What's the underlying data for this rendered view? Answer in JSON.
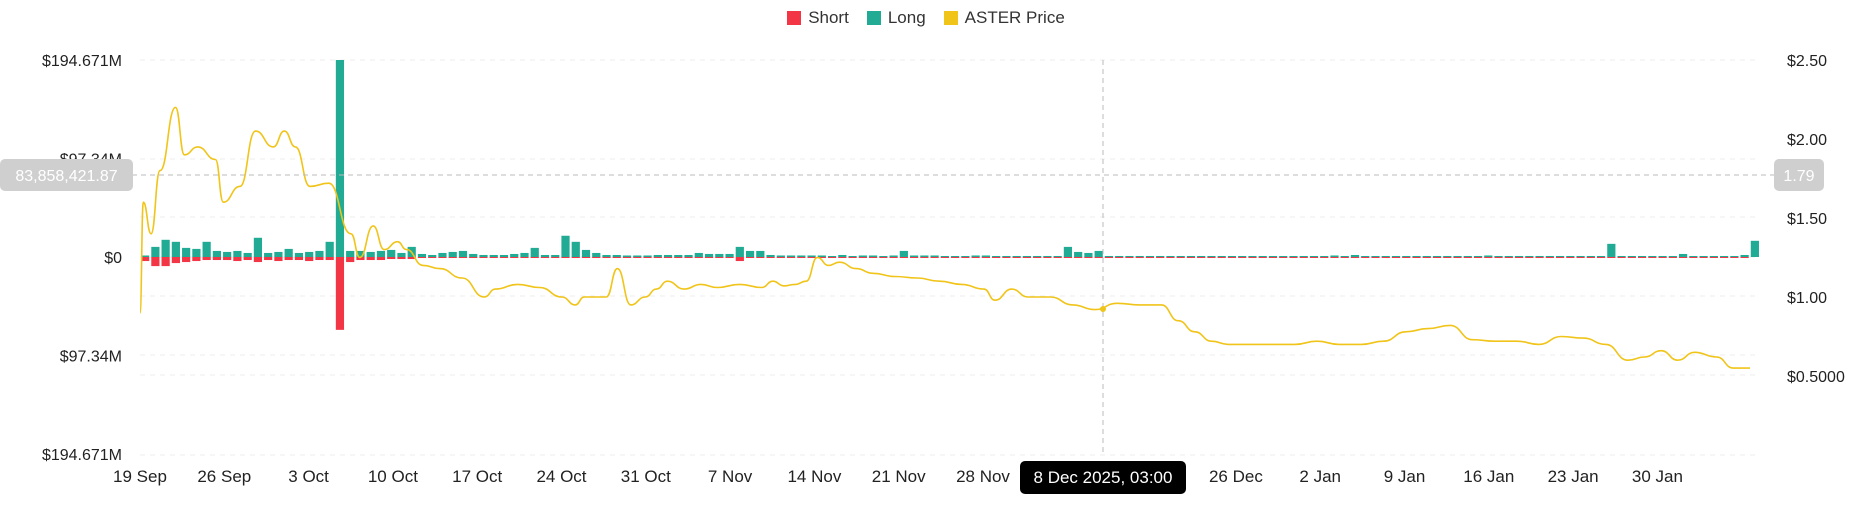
{
  "legend": {
    "short_label": "Short",
    "long_label": "Long",
    "price_label": "ASTER Price"
  },
  "colors": {
    "short": "#F23645",
    "long": "#22AB94",
    "price": "#F0C419",
    "grid": "#ECECEC",
    "crosshair": "#BBBBBB",
    "badge_bg": "#CFCFCF",
    "tooltip_bg": "#000000"
  },
  "crosshair": {
    "date_label": "8 Dec 2025, 03:00",
    "left_value_label": "83,858,421.87",
    "right_value_label": "1.79"
  },
  "chart_data": {
    "type": "bar+line",
    "y_left": {
      "ticks": [
        "$194.671M",
        "$97.34M",
        "$0",
        "$97.34M",
        "$194.671M"
      ],
      "tick_values": [
        194.671,
        97.34,
        0,
        -97.34,
        -194.671
      ],
      "range": [
        -194.671,
        194.671
      ],
      "unit": "$M"
    },
    "y_right": {
      "ticks": [
        "$2.50",
        "$2.00",
        "$1.50",
        "$1.00",
        "$0.5000"
      ],
      "tick_values": [
        2.5,
        2.0,
        1.5,
        1.0,
        0.5
      ],
      "range": [
        0.0,
        2.5
      ]
    },
    "x_ticks": [
      "19 Sep",
      "26 Sep",
      "3 Oct",
      "10 Oct",
      "17 Oct",
      "24 Oct",
      "31 Oct",
      "7 Nov",
      "14 Nov",
      "21 Nov",
      "28 Nov",
      "",
      "19 Dec",
      "26 Dec",
      "2 Jan",
      "9 Jan",
      "16 Jan",
      "23 Jan",
      "30 Jan"
    ],
    "long": [
      1.5,
      10,
      17,
      15,
      9,
      8,
      15,
      6,
      5,
      6,
      4,
      19,
      4,
      5,
      8,
      4,
      5,
      6,
      15,
      194.671,
      6,
      6,
      5,
      6,
      7,
      4,
      10,
      3,
      2,
      4,
      5,
      6,
      3,
      2,
      2,
      2,
      3,
      4,
      9,
      2,
      2,
      21,
      15,
      7,
      4,
      2,
      2,
      1.5,
      1.5,
      1.5,
      2,
      2,
      2,
      2,
      4,
      3,
      3,
      3,
      10,
      6,
      6,
      2,
      1.5,
      1.5,
      1.5,
      1.5,
      1.5,
      1,
      2,
      1,
      1.5,
      1.5,
      1,
      1.5,
      6,
      1.5,
      1.5,
      1.5,
      1,
      1,
      1,
      1.5,
      1.5,
      1,
      1,
      1,
      1,
      1,
      1,
      1,
      10,
      5,
      4,
      6,
      1,
      1,
      1,
      1,
      1,
      1,
      1,
      1,
      1,
      1,
      1,
      1,
      1,
      1,
      1,
      1,
      1,
      1,
      1,
      1,
      1,
      1,
      1.5,
      1,
      2,
      1,
      1,
      1,
      1,
      1,
      1,
      1,
      1,
      1,
      1,
      1,
      1,
      1.5,
      1,
      1,
      1,
      1,
      1,
      1,
      1,
      1,
      1,
      1,
      1,
      13,
      1,
      1,
      1,
      1,
      1,
      1,
      3,
      1,
      1,
      1,
      1,
      1,
      2,
      16
    ],
    "short": [
      -4,
      -9,
      -9,
      -6,
      -5,
      -4,
      -3,
      -3,
      -3,
      -4,
      -3,
      -5,
      -3,
      -4,
      -3,
      -3,
      -4,
      -3,
      -3,
      -72,
      -5,
      -3,
      -3,
      -3,
      -2,
      -2,
      -2,
      -1,
      -1,
      -1,
      -1,
      -1,
      -1,
      -1,
      -1,
      -1,
      -1,
      -1,
      -1,
      -1,
      -1,
      -1,
      -1,
      -1,
      -1,
      -1,
      -1,
      -1,
      -1,
      -1,
      -1,
      -1,
      -1,
      -1,
      -1,
      -1,
      -1,
      -1,
      -4,
      -1,
      -1,
      -1,
      -1,
      -1,
      -1,
      -1,
      -1,
      -1,
      -1,
      -1,
      -1,
      -1,
      -1,
      -1,
      -1,
      -1,
      -1,
      -1,
      -1,
      -1,
      -1,
      -1,
      -1,
      -1,
      -1,
      -1,
      -1,
      -1,
      -1,
      -1,
      -1,
      -1,
      -1,
      -1,
      -1,
      -1,
      -1,
      -1,
      -1,
      -1,
      -1,
      -1,
      -1,
      -1,
      -1,
      -1,
      -1,
      -1,
      -1,
      -1,
      -1,
      -1,
      -1,
      -1,
      -1,
      -1,
      -1,
      -1,
      -1,
      -1,
      -1,
      -1,
      -1,
      -1,
      -1,
      -1,
      -1,
      -1,
      -1,
      -1,
      -1,
      -1,
      -1,
      -1,
      -1,
      -1,
      -1,
      -1,
      -1,
      -1,
      -1,
      -1,
      -1,
      -1,
      -1,
      -1,
      -1,
      -1,
      -1,
      -1,
      -1,
      -1,
      -1,
      -1,
      -1,
      -1,
      -1
    ],
    "price": [
      [
        0,
        0.9
      ],
      [
        0.3,
        1.6
      ],
      [
        1,
        1.4
      ],
      [
        1.8,
        1.8
      ],
      [
        3.2,
        2.2
      ],
      [
        4.0,
        1.9
      ],
      [
        5.2,
        1.95
      ],
      [
        6.8,
        1.87
      ],
      [
        7.5,
        1.6
      ],
      [
        9.0,
        1.7
      ],
      [
        10.4,
        2.05
      ],
      [
        12.0,
        1.95
      ],
      [
        13.0,
        2.05
      ],
      [
        14.0,
        1.95
      ],
      [
        15.3,
        1.7
      ],
      [
        17.0,
        1.72
      ],
      [
        19.0,
        1.4
      ],
      [
        19.8,
        1.25
      ],
      [
        21.0,
        1.45
      ],
      [
        22.0,
        1.3
      ],
      [
        23.2,
        1.35
      ],
      [
        24.0,
        1.3
      ],
      [
        25.5,
        1.2
      ],
      [
        27.0,
        1.18
      ],
      [
        29.0,
        1.12
      ],
      [
        31.0,
        1.0
      ],
      [
        32.0,
        1.05
      ],
      [
        34.0,
        1.08
      ],
      [
        36.0,
        1.06
      ],
      [
        38.0,
        1.0
      ],
      [
        39.2,
        0.95
      ],
      [
        40.0,
        1.0
      ],
      [
        42.0,
        1.0
      ],
      [
        43.0,
        1.18
      ],
      [
        44.2,
        0.95
      ],
      [
        45.5,
        1.0
      ],
      [
        46.5,
        1.05
      ],
      [
        47.5,
        1.1
      ],
      [
        49.0,
        1.05
      ],
      [
        50.5,
        1.08
      ],
      [
        52.0,
        1.06
      ],
      [
        54.0,
        1.08
      ],
      [
        56.0,
        1.06
      ],
      [
        57.0,
        1.1
      ],
      [
        58.0,
        1.07
      ],
      [
        59.0,
        1.08
      ],
      [
        60.0,
        1.1
      ],
      [
        61.0,
        1.25
      ],
      [
        62.0,
        1.2
      ],
      [
        63.0,
        1.22
      ],
      [
        64.5,
        1.18
      ],
      [
        66.0,
        1.15
      ],
      [
        68.0,
        1.13
      ],
      [
        70.0,
        1.12
      ],
      [
        72.0,
        1.1
      ],
      [
        74.0,
        1.08
      ],
      [
        76.0,
        1.05
      ],
      [
        77.0,
        0.98
      ],
      [
        78.5,
        1.05
      ],
      [
        80.0,
        1.0
      ],
      [
        82.0,
        1.0
      ],
      [
        84.0,
        0.95
      ],
      [
        86.0,
        0.92
      ],
      [
        88.0,
        0.96
      ],
      [
        90.0,
        0.95
      ],
      [
        92.0,
        0.95
      ],
      [
        93.5,
        0.85
      ],
      [
        95.0,
        0.78
      ],
      [
        96.5,
        0.72
      ],
      [
        98.0,
        0.7
      ],
      [
        100.0,
        0.7
      ],
      [
        102.0,
        0.7
      ],
      [
        104.0,
        0.7
      ],
      [
        106.0,
        0.72
      ],
      [
        108.0,
        0.7
      ],
      [
        110.0,
        0.7
      ],
      [
        112.0,
        0.72
      ],
      [
        114.0,
        0.78
      ],
      [
        116.0,
        0.8
      ],
      [
        118.0,
        0.82
      ],
      [
        120.0,
        0.73
      ],
      [
        122.0,
        0.72
      ],
      [
        124.0,
        0.72
      ],
      [
        126.0,
        0.7
      ],
      [
        128.0,
        0.75
      ],
      [
        130.0,
        0.74
      ],
      [
        132.0,
        0.7
      ],
      [
        134.0,
        0.6
      ],
      [
        135.5,
        0.62
      ],
      [
        137.0,
        0.66
      ],
      [
        138.5,
        0.6
      ],
      [
        140.0,
        0.65
      ],
      [
        142.0,
        0.62
      ],
      [
        143.5,
        0.55
      ],
      [
        145.0,
        0.55
      ]
    ],
    "crosshair_index": 84
  }
}
